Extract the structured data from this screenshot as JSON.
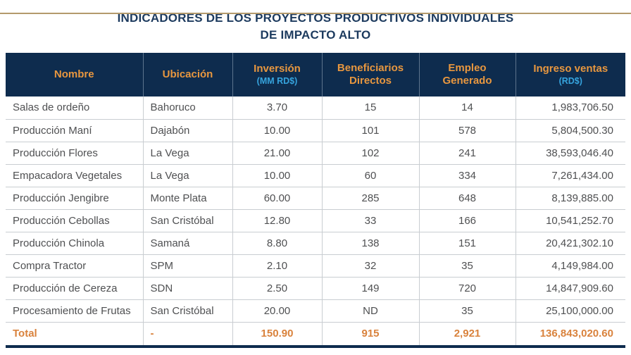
{
  "header": {
    "title_line1": "INDICADORES DE LOS PROYECTOS PRODUCTIVOS INDIVIDUALES",
    "title_line2": "DE IMPACTO ALTO"
  },
  "colors": {
    "header_background": "#0e2c4e",
    "header_label_orange": "#e8973f",
    "header_sub_blue": "#36a4de",
    "title_navy": "#1c3a5e",
    "body_text": "#4f5052",
    "total_orange": "#d9823c",
    "grid_line": "#c9cdd1",
    "top_rule_tan": "#b49a6c"
  },
  "table": {
    "columns": [
      {
        "label": "Nombre",
        "sub": ""
      },
      {
        "label": "Ubicación",
        "sub": ""
      },
      {
        "label": "Inversión",
        "sub": "(MM RD$)"
      },
      {
        "label": "Beneficiarios Directos",
        "sub": ""
      },
      {
        "label": "Empleo Generado",
        "sub": ""
      },
      {
        "label": "Ingreso ventas",
        "sub": "(RD$)"
      }
    ],
    "rows": [
      [
        "Salas de ordeño",
        "Bahoruco",
        "3.70",
        "15",
        "14",
        "1,983,706.50"
      ],
      [
        "Producción Maní",
        "Dajabón",
        "10.00",
        "101",
        "578",
        "5,804,500.30"
      ],
      [
        "Producción Flores",
        "La Vega",
        "21.00",
        "102",
        "241",
        "38,593,046.40"
      ],
      [
        "Empacadora Vegetales",
        "La Vega",
        "10.00",
        "60",
        "334",
        "7,261,434.00"
      ],
      [
        "Producción Jengibre",
        "Monte Plata",
        "60.00",
        "285",
        "648",
        "8,139,885.00"
      ],
      [
        "Producción Cebollas",
        "San Cristóbal",
        "12.80",
        "33",
        "166",
        "10,541,252.70"
      ],
      [
        "Producción Chinola",
        "Samaná",
        "8.80",
        "138",
        "151",
        "20,421,302.10"
      ],
      [
        "Compra Tractor",
        "SPM",
        "2.10",
        "32",
        "35",
        "4,149,984.00"
      ],
      [
        "Producción de Cereza",
        "SDN",
        "2.50",
        "149",
        "720",
        "14,847,909.60"
      ],
      [
        "Procesamiento de Frutas",
        "San Cristóbal",
        "20.00",
        "ND",
        "35",
        "25,100,000.00"
      ]
    ],
    "total_row": [
      "Total",
      "-",
      "150.90",
      "915",
      "2,921",
      "136,843,020.60"
    ]
  }
}
